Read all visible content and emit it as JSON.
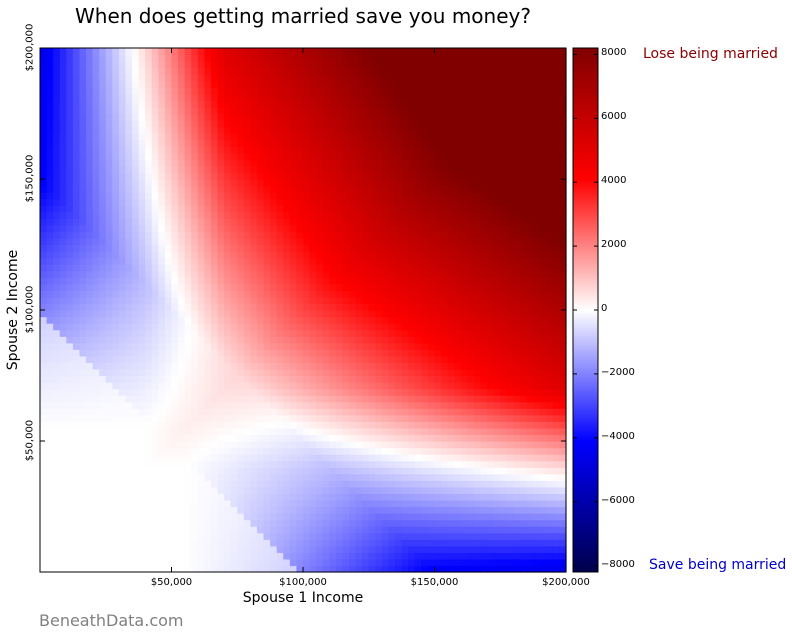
{
  "chart_data": {
    "type": "heatmap",
    "title": "When does getting married save you money?",
    "xlabel": "Spouse 1 Income",
    "ylabel": "Spouse 2 Income",
    "xlim": [
      0,
      200000
    ],
    "ylim": [
      0,
      200000
    ],
    "x_ticks": [
      {
        "value": 50000,
        "label": "$50,000"
      },
      {
        "value": 100000,
        "label": "$100,000"
      },
      {
        "value": 150000,
        "label": "$150,000"
      },
      {
        "value": 200000,
        "label": "$200,000"
      }
    ],
    "y_ticks": [
      {
        "value": 50000,
        "label": "$50,000"
      },
      {
        "value": 100000,
        "label": "$100,000"
      },
      {
        "value": 150000,
        "label": "$150,000"
      },
      {
        "value": 200000,
        "label": "$200,000"
      }
    ],
    "colormap": "seismic",
    "colorbar": {
      "range": [
        -8200,
        8200
      ],
      "ticks": [
        {
          "value": 8000,
          "label": "8000"
        },
        {
          "value": 6000,
          "label": "6000"
        },
        {
          "value": 4000,
          "label": "4000"
        },
        {
          "value": 2000,
          "label": "2000"
        },
        {
          "value": 0,
          "label": "0"
        },
        {
          "value": -2000,
          "label": "−2000"
        },
        {
          "value": -4000,
          "label": "−4000"
        },
        {
          "value": -6000,
          "label": "−6000"
        },
        {
          "value": -8000,
          "label": "−8000"
        }
      ]
    },
    "grid_step": 2500,
    "annotations": {
      "top": "Lose being married",
      "bottom": "Save being married"
    },
    "colors": {
      "lose": "#8b0000",
      "save": "#0000cc"
    }
  },
  "watermark": "BeneathData.com"
}
